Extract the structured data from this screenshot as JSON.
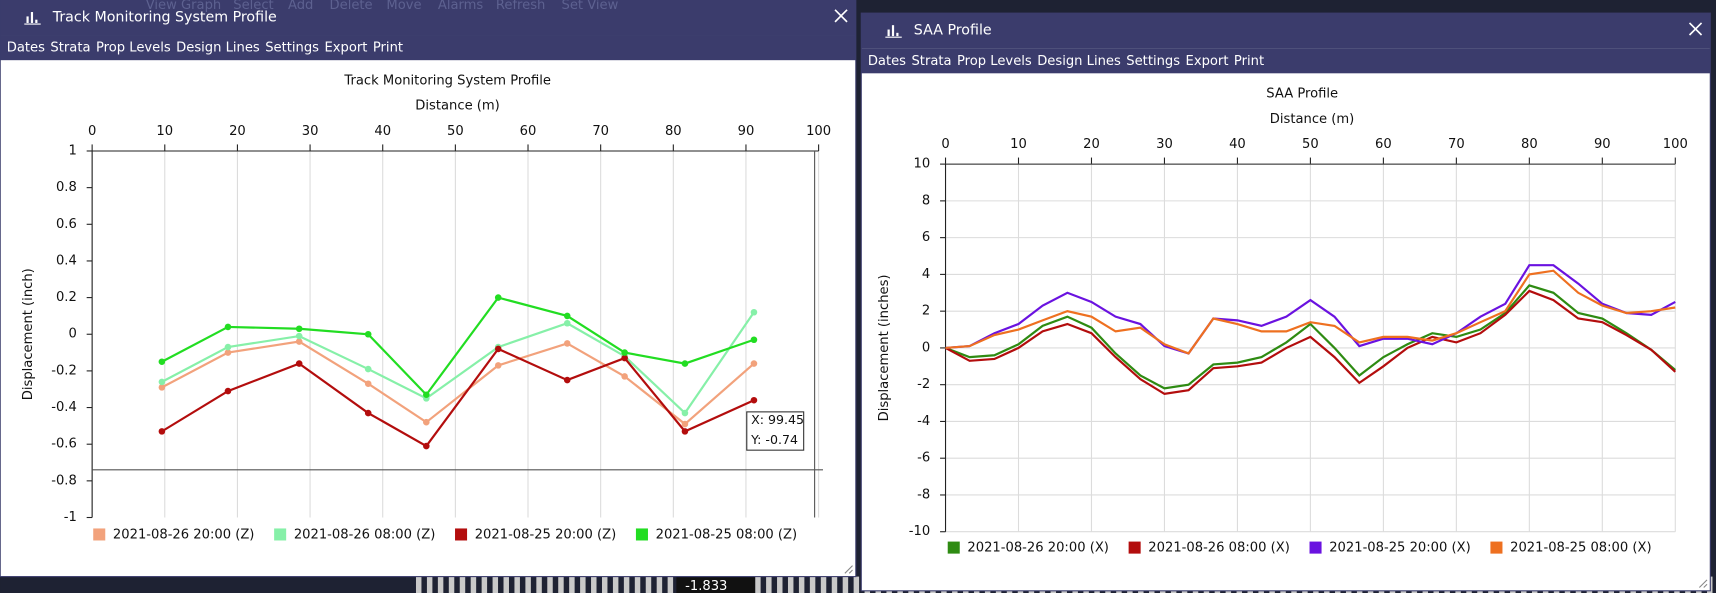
{
  "background": {
    "menu": [
      "View Graph",
      "Select",
      "Add",
      "Delete",
      "Move",
      "Alarms",
      "Refresh",
      "Set View"
    ],
    "status_value": "-1.833"
  },
  "windows": [
    {
      "title": "Track Monitoring System Profile",
      "menu": [
        "Dates",
        "Strata",
        "Prop Levels",
        "Design Lines",
        "Settings",
        "Export",
        "Print"
      ]
    },
    {
      "title": "SAA Profile",
      "menu": [
        "Dates",
        "Strata",
        "Prop Levels",
        "Design Lines",
        "Settings",
        "Export",
        "Print"
      ]
    }
  ],
  "chart_data": [
    {
      "type": "line",
      "title": "Track Monitoring System Profile",
      "xlabel": "Distance (m)",
      "ylabel": "Displacement (inch)",
      "x": [
        9.6,
        18.7,
        28.5,
        38,
        46,
        55.9,
        65.4,
        73.3,
        81.6,
        91.1
      ],
      "xlim": [
        0,
        100
      ],
      "xticks": [
        0,
        10,
        20,
        30,
        40,
        50,
        60,
        70,
        80,
        90,
        100
      ],
      "ylim": [
        -1,
        1
      ],
      "yticks": [
        -1,
        -0.8,
        -0.6,
        -0.4,
        -0.2,
        0,
        0.2,
        0.4,
        0.6,
        0.8,
        1
      ],
      "xgrid": true,
      "ygrid": false,
      "markers": true,
      "legend": "bottom",
      "series": [
        {
          "name": "2021-08-26 20:00 (Z)",
          "color": "#f2a27c",
          "values": [
            -0.29,
            -0.1,
            -0.04,
            -0.27,
            -0.48,
            -0.17,
            -0.05,
            -0.23,
            -0.49,
            -0.16
          ]
        },
        {
          "name": "2021-08-26 08:00 (Z)",
          "color": "#86f0a8",
          "values": [
            -0.26,
            -0.07,
            -0.01,
            -0.19,
            -0.35,
            -0.07,
            0.06,
            -0.12,
            -0.43,
            0.12
          ]
        },
        {
          "name": "2021-08-25 20:00 (Z)",
          "color": "#b30d0d",
          "values": [
            -0.53,
            -0.31,
            -0.16,
            -0.43,
            -0.61,
            -0.08,
            -0.25,
            -0.13,
            -0.53,
            -0.36
          ]
        },
        {
          "name": "2021-08-25 08:00 (Z)",
          "color": "#22dd22",
          "values": [
            -0.15,
            0.04,
            0.03,
            0.0,
            -0.33,
            0.2,
            0.1,
            -0.1,
            -0.16,
            -0.03
          ]
        }
      ],
      "crosshair": {
        "x": 99.45,
        "y": -0.74,
        "labels": [
          "X: 99.45",
          "Y: -0.74"
        ]
      }
    },
    {
      "type": "line",
      "title": "SAA Profile",
      "xlabel": "Distance (m)",
      "ylabel": "Displacement (inches)",
      "x": [
        0,
        3.3,
        6.7,
        10,
        13.3,
        16.7,
        20,
        23.3,
        26.7,
        30,
        33.3,
        36.7,
        40,
        43.3,
        46.7,
        50,
        53.3,
        56.7,
        60,
        63.3,
        66.7,
        70,
        73.3,
        76.7,
        80,
        83.3,
        86.7,
        90,
        93.3,
        96.7,
        100
      ],
      "xlim": [
        0,
        100
      ],
      "xticks": [
        0,
        10,
        20,
        30,
        40,
        50,
        60,
        70,
        80,
        90,
        100
      ],
      "ylim": [
        -10,
        10
      ],
      "yticks": [
        -10,
        -8,
        -6,
        -4,
        -2,
        0,
        2,
        4,
        6,
        8,
        10
      ],
      "xgrid": true,
      "ygrid": true,
      "markers": false,
      "legend": "bottom",
      "series": [
        {
          "name": "2021-08-26 20:00 (X)",
          "color": "#2e8b12",
          "values": [
            0,
            -0.5,
            -0.4,
            0.2,
            1.2,
            1.7,
            1.1,
            -0.3,
            -1.5,
            -2.2,
            -2.0,
            -0.9,
            -0.8,
            -0.5,
            0.3,
            1.3,
            0.0,
            -1.5,
            -0.5,
            0.2,
            0.8,
            0.6,
            1.0,
            1.9,
            3.4,
            3.0,
            1.9,
            1.6,
            0.8,
            -0.1,
            -1.2
          ]
        },
        {
          "name": "2021-08-26 08:00 (X)",
          "color": "#b30d0d",
          "values": [
            0,
            -0.7,
            -0.6,
            0.0,
            0.9,
            1.3,
            0.8,
            -0.5,
            -1.7,
            -2.5,
            -2.3,
            -1.1,
            -1.0,
            -0.8,
            0.0,
            0.6,
            -0.5,
            -1.9,
            -1.0,
            0.0,
            0.6,
            0.3,
            0.8,
            1.8,
            3.1,
            2.6,
            1.6,
            1.4,
            0.7,
            -0.1,
            -1.3
          ]
        },
        {
          "name": "2021-08-25 20:00 (X)",
          "color": "#6a12e0",
          "values": [
            0,
            0.1,
            0.8,
            1.3,
            2.3,
            3.0,
            2.5,
            1.7,
            1.3,
            0.1,
            -0.3,
            1.6,
            1.5,
            1.2,
            1.7,
            2.6,
            1.7,
            0.1,
            0.5,
            0.5,
            0.2,
            0.8,
            1.7,
            2.4,
            4.5,
            4.5,
            3.5,
            2.4,
            1.9,
            1.8,
            2.5
          ]
        },
        {
          "name": "2021-08-25 08:00 (X)",
          "color": "#ee7020",
          "values": [
            0,
            0.1,
            0.7,
            1.0,
            1.5,
            2.0,
            1.7,
            0.9,
            1.1,
            0.2,
            -0.3,
            1.6,
            1.3,
            0.9,
            0.9,
            1.4,
            1.2,
            0.3,
            0.6,
            0.6,
            0.4,
            0.8,
            1.4,
            2.0,
            4.0,
            4.2,
            3.0,
            2.3,
            1.9,
            2.0,
            2.2
          ]
        }
      ]
    }
  ]
}
